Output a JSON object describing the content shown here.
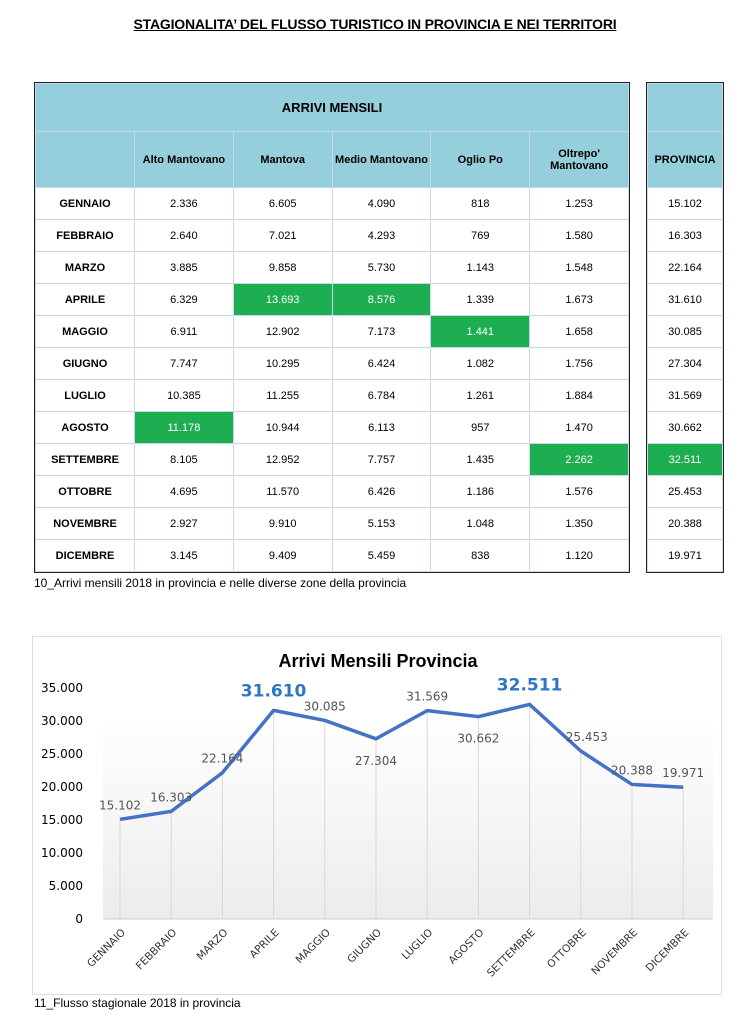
{
  "title": "STAGIONALITA’ DEL FLUSSO TURISTICO IN PROVINCIA E NEI TERRITORI",
  "table": {
    "header": "ARRIVI MENSILI",
    "columns": [
      "Alto Mantovano",
      "Mantova",
      "Medio Mantovano",
      "Oglio Po",
      "Oltrepo' Mantovano"
    ],
    "provincia_header": "PROVINCIA",
    "rows": [
      {
        "month": "GENNAIO",
        "values": [
          "2.336",
          "6.605",
          "4.090",
          "818",
          "1.253"
        ],
        "provincia": "15.102"
      },
      {
        "month": "FEBBRAIO",
        "values": [
          "2.640",
          "7.021",
          "4.293",
          "769",
          "1.580"
        ],
        "provincia": "16.303"
      },
      {
        "month": "MARZO",
        "values": [
          "3.885",
          "9.858",
          "5.730",
          "1.143",
          "1.548"
        ],
        "provincia": "22.164"
      },
      {
        "month": "APRILE",
        "values": [
          "6.329",
          "13.693",
          "8.576",
          "1.339",
          "1.673"
        ],
        "provincia": "31.610"
      },
      {
        "month": "MAGGIO",
        "values": [
          "6.911",
          "12.902",
          "7.173",
          "1.441",
          "1.658"
        ],
        "provincia": "30.085"
      },
      {
        "month": "GIUGNO",
        "values": [
          "7.747",
          "10.295",
          "6.424",
          "1.082",
          "1.756"
        ],
        "provincia": "27.304"
      },
      {
        "month": "LUGLIO",
        "values": [
          "10.385",
          "11.255",
          "6.784",
          "1.261",
          "1.884"
        ],
        "provincia": "31.569"
      },
      {
        "month": "AGOSTO",
        "values": [
          "11.178",
          "10.944",
          "6.113",
          "957",
          "1.470"
        ],
        "provincia": "30.662"
      },
      {
        "month": "SETTEMBRE",
        "values": [
          "8.105",
          "12.952",
          "7.757",
          "1.435",
          "2.262"
        ],
        "provincia": "32.511"
      },
      {
        "month": "OTTOBRE",
        "values": [
          "4.695",
          "11.570",
          "6.426",
          "1.186",
          "1.576"
        ],
        "provincia": "25.453"
      },
      {
        "month": "NOVEMBRE",
        "values": [
          "2.927",
          "9.910",
          "5.153",
          "1.048",
          "1.350"
        ],
        "provincia": "20.388"
      },
      {
        "month": "DICEMBRE",
        "values": [
          "3.145",
          "9.409",
          "5.459",
          "838",
          "1.120"
        ],
        "provincia": "19.971"
      }
    ],
    "highlight_color": "#1cae50",
    "caption": "10_Arrivi mensili 2018 in provincia e nelle diverse zone della provincia"
  },
  "chart_data": {
    "type": "line",
    "title": "Arrivi Mensili Provincia",
    "categories": [
      "GENNAIO",
      "FEBBRAIO",
      "MARZO",
      "APRILE",
      "MAGGIO",
      "GIUGNO",
      "LUGLIO",
      "AGOSTO",
      "SETTEMBRE",
      "OTTOBRE",
      "NOVEMBRE",
      "DICEMBRE"
    ],
    "values": [
      15102,
      16303,
      22164,
      31610,
      30085,
      27304,
      31569,
      30662,
      32511,
      25453,
      20388,
      19971
    ],
    "labels": [
      "15.102",
      "16.303",
      "22.164",
      "31.610",
      "30.085",
      "27.304",
      "31.569",
      "30.662",
      "32.511",
      "25.453",
      "20.388",
      "19.971"
    ],
    "highlighted": [
      "APRILE",
      "SETTEMBRE"
    ],
    "ylim": [
      0,
      35000
    ],
    "yticks": [
      "0",
      "5.000",
      "10.000",
      "15.000",
      "20.000",
      "25.000",
      "30.000",
      "35.000"
    ],
    "line_color": "#4472c4",
    "highlight_label_color": "#2e75c6",
    "xlabel": "",
    "ylabel": ""
  },
  "chart_caption": "11_Flusso stagionale 2018 in provincia"
}
